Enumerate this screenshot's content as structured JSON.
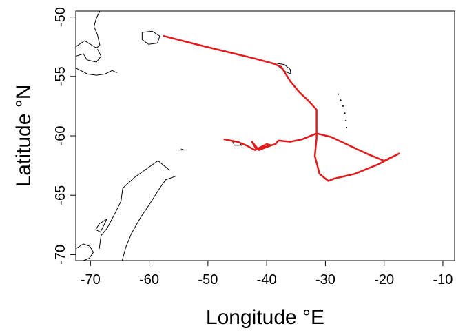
{
  "chart_data": {
    "type": "map_track",
    "xlabel": "Longitude °E",
    "ylabel": "Latitude °N",
    "xlim": [
      -72.5,
      -8
    ],
    "ylim": [
      -70.5,
      -49.5
    ],
    "x_ticks": [
      -70,
      -60,
      -50,
      -40,
      -30,
      -20,
      -10
    ],
    "y_ticks": [
      -50,
      -55,
      -60,
      -65,
      -70
    ],
    "x_tick_labels": [
      "-70",
      "-60",
      "-50",
      "-40",
      "-30",
      "-20",
      "-10"
    ],
    "y_tick_labels": [
      "-50",
      "-55",
      "-60",
      "-65",
      "-70"
    ],
    "grid": false,
    "track_color": "#e31a1c",
    "coast_color": "#000000",
    "track": [
      [
        -57.5,
        -51.6
      ],
      [
        -52,
        -52.3
      ],
      [
        -47,
        -52.9
      ],
      [
        -42,
        -53.5
      ],
      [
        -39,
        -53.9
      ],
      [
        -37.5,
        -54.2
      ],
      [
        -36,
        -55.4
      ],
      [
        -34.5,
        -56.3
      ],
      [
        -33,
        -57
      ],
      [
        -31.5,
        -57.8
      ],
      [
        -31.5,
        -60.2
      ],
      [
        -31.8,
        -61.7
      ],
      [
        -31,
        -63.2
      ],
      [
        -29.5,
        -63.8
      ],
      [
        -28.5,
        -63.6
      ],
      [
        -25,
        -63.2
      ],
      [
        -21,
        -62.4
      ],
      [
        -17.5,
        -61.5
      ],
      [
        -18.3,
        -61.7
      ],
      [
        -20,
        -62.1
      ],
      [
        -22.5,
        -61.6
      ],
      [
        -26,
        -60.8
      ],
      [
        -29,
        -60.1
      ],
      [
        -31.5,
        -59.8
      ],
      [
        -34,
        -60.3
      ],
      [
        -36,
        -60.5
      ],
      [
        -38,
        -60.4
      ],
      [
        -38.5,
        -60.7
      ],
      [
        -40,
        -60.9
      ],
      [
        -41.8,
        -61.1
      ],
      [
        -42.5,
        -60.5
      ],
      [
        -42,
        -60.8
      ],
      [
        -41.3,
        -61.2
      ],
      [
        -40.3,
        -61
      ],
      [
        -39.2,
        -60.8
      ],
      [
        -40,
        -60.7
      ],
      [
        -42,
        -61.2
      ],
      [
        -43.5,
        -60.8
      ],
      [
        -45,
        -60.5
      ],
      [
        -47.2,
        -60.3
      ]
    ],
    "coastlines": [
      [
        [
          -72.5,
          -52.5
        ],
        [
          -71,
          -52
        ],
        [
          -69,
          -52.6
        ],
        [
          -68.4,
          -52.4
        ],
        [
          -68.8,
          -51.5
        ],
        [
          -69.4,
          -50.8
        ],
        [
          -69,
          -50.1
        ],
        [
          -68.4,
          -49.5
        ]
      ],
      [
        [
          -72.5,
          -53.3
        ],
        [
          -71.2,
          -53.1
        ],
        [
          -70.6,
          -53.6
        ],
        [
          -69,
          -53.8
        ],
        [
          -68.2,
          -53.3
        ],
        [
          -68.8,
          -52.7
        ]
      ],
      [
        [
          -72.5,
          -54.3
        ],
        [
          -70.5,
          -54.8
        ],
        [
          -69,
          -54.9
        ],
        [
          -67.5,
          -54.8
        ],
        [
          -66.3,
          -54.5
        ],
        [
          -65.5,
          -54.7
        ]
      ],
      [
        [
          -61.2,
          -51.3
        ],
        [
          -59.5,
          -51.2
        ],
        [
          -58.2,
          -51.6
        ],
        [
          -58.6,
          -52.2
        ],
        [
          -60.1,
          -52.3
        ],
        [
          -61.2,
          -51.9
        ],
        [
          -61.2,
          -51.3
        ]
      ],
      [
        [
          -38.3,
          -53.9
        ],
        [
          -37,
          -54
        ],
        [
          -36,
          -54.4
        ],
        [
          -35.9,
          -54.8
        ],
        [
          -36.8,
          -54.6
        ],
        [
          -38.1,
          -54.1
        ]
      ],
      [
        [
          -45.8,
          -60.5
        ],
        [
          -44.7,
          -60.5
        ],
        [
          -44.3,
          -60.8
        ],
        [
          -45.5,
          -60.8
        ],
        [
          -45.8,
          -60.5
        ]
      ],
      [
        [
          -56.5,
          -62.9
        ],
        [
          -58.5,
          -62.1
        ],
        [
          -60.5,
          -62.8
        ],
        [
          -62.5,
          -63.5
        ],
        [
          -64.5,
          -64.4
        ],
        [
          -64.8,
          -65.5
        ],
        [
          -65.8,
          -66.5
        ],
        [
          -67.2,
          -67.8
        ],
        [
          -68.2,
          -68.4
        ],
        [
          -68.5,
          -69.5
        ]
      ],
      [
        [
          -55.5,
          -63.4
        ],
        [
          -57.2,
          -63.7
        ],
        [
          -58.2,
          -64.4
        ],
        [
          -60,
          -65.8
        ],
        [
          -61.5,
          -66.9
        ],
        [
          -63,
          -68.2
        ],
        [
          -64,
          -69.4
        ],
        [
          -64.6,
          -70.5
        ]
      ],
      [
        [
          -67.2,
          -67
        ],
        [
          -68.5,
          -67.4
        ],
        [
          -69.1,
          -67.9
        ],
        [
          -68.3,
          -68.1
        ],
        [
          -67.2,
          -67
        ]
      ],
      [
        [
          -72.5,
          -69.5
        ],
        [
          -71.2,
          -69.1
        ],
        [
          -70.1,
          -69.3
        ],
        [
          -69.5,
          -69.8
        ],
        [
          -70.2,
          -70.3
        ],
        [
          -71.2,
          -70.5
        ]
      ],
      [
        [
          -54.6,
          -61.1
        ],
        [
          -54,
          -61.2
        ],
        [
          -55,
          -61.2
        ]
      ]
    ],
    "islands": [
      [
        -27.8,
        -56.5
      ],
      [
        -27.4,
        -57.0
      ],
      [
        -27.0,
        -57.5
      ],
      [
        -26.7,
        -58.1
      ],
      [
        -26.5,
        -58.7
      ],
      [
        -26.4,
        -59.3
      ]
    ]
  }
}
